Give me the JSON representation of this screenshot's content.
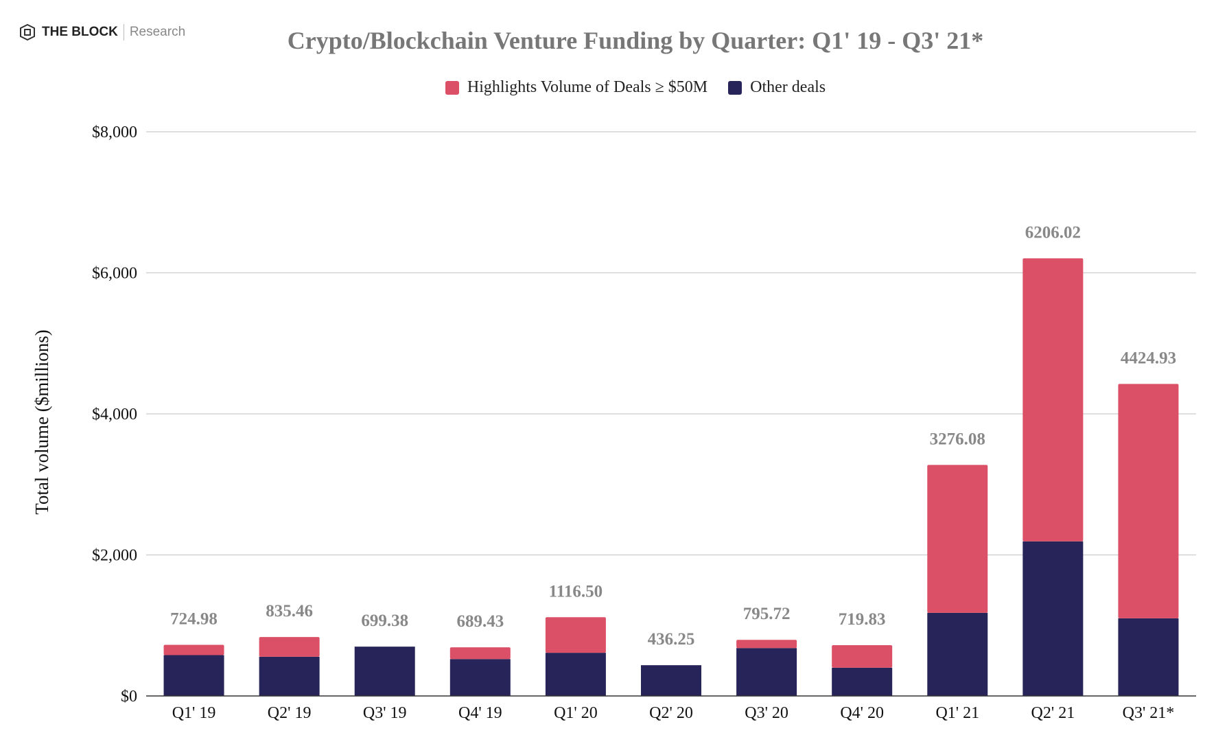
{
  "branding": {
    "name": "THE BLOCK",
    "sub": "Research"
  },
  "chart_data": {
    "type": "bar",
    "stacked": true,
    "title": "Crypto/Blockchain Venture Funding by Quarter: Q1' 19 - Q3' 21*",
    "ylabel": "Total volume ($millions)",
    "xlabel": "",
    "ylim": [
      0,
      8000
    ],
    "yticks": [
      0,
      2000,
      4000,
      6000,
      8000
    ],
    "ytick_labels": [
      "$0",
      "$2,000",
      "$4,000",
      "$6,000",
      "$8,000"
    ],
    "grid": true,
    "legend_position": "top",
    "categories": [
      "Q1' 19",
      "Q2' 19",
      "Q3' 19",
      "Q4' 19",
      "Q1' 20",
      "Q2' 20",
      "Q3' 20",
      "Q4' 20",
      "Q1' 21",
      "Q2' 21",
      "Q3' 21*"
    ],
    "totals": [
      724.98,
      835.46,
      699.38,
      689.43,
      1116.5,
      436.25,
      795.72,
      719.83,
      3276.08,
      6206.02,
      4424.93
    ],
    "total_labels": [
      "724.98",
      "835.46",
      "699.38",
      "689.43",
      "1116.50",
      "436.25",
      "795.72",
      "719.83",
      "3276.08",
      "6206.02",
      "4424.93"
    ],
    "series": [
      {
        "name": "Other deals",
        "color": "#262459",
        "values": [
          579,
          556,
          699.38,
          523,
          612,
          436.25,
          679,
          400,
          1179,
          2192,
          1101
        ]
      },
      {
        "name": "Highlights Volume of Deals ≥ $50M",
        "color": "#dc5067",
        "values": [
          145.98,
          279.46,
          0,
          166.43,
          504.5,
          0,
          116.72,
          319.83,
          2097.08,
          4014.02,
          3323.93
        ]
      }
    ]
  }
}
